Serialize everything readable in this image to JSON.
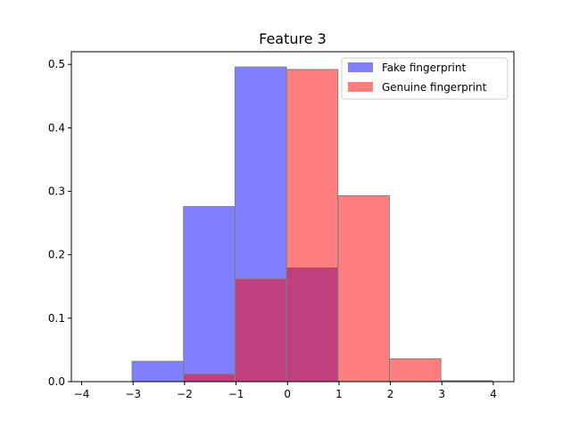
{
  "chart_data": {
    "type": "histogram",
    "title": "Feature 3",
    "xlabel": "",
    "ylabel": "",
    "xlim": [
      -4.2,
      4.4
    ],
    "ylim": [
      0,
      0.52
    ],
    "xticks": [
      -4,
      -3,
      -2,
      -1,
      0,
      1,
      2,
      3,
      4
    ],
    "yticks": [
      0.0,
      0.1,
      0.2,
      0.3,
      0.4,
      0.5
    ],
    "ytick_labels": [
      "0.0",
      "0.1",
      "0.2",
      "0.3",
      "0.4",
      "0.5"
    ],
    "grid": false,
    "legend_position": "top-right",
    "series": [
      {
        "name": "Fake fingerprint",
        "color": "#0000ff",
        "opacity": 0.5,
        "bins": [
          {
            "x0": -3.02,
            "x1": -2.02,
            "value": 0.032
          },
          {
            "x0": -2.02,
            "x1": -1.02,
            "value": 0.276
          },
          {
            "x0": -1.02,
            "x1": -0.02,
            "value": 0.496
          },
          {
            "x0": -0.02,
            "x1": 0.98,
            "value": 0.179
          },
          {
            "x0": 0.98,
            "x1": 1.98,
            "value": 0.0
          },
          {
            "x0": 1.98,
            "x1": 2.98,
            "value": 0.0
          },
          {
            "x0": 2.98,
            "x1": 3.98,
            "value": 0.0
          }
        ]
      },
      {
        "name": "Genuine fingerprint",
        "color": "#ff0000",
        "opacity": 0.5,
        "bins": [
          {
            "x0": -2.02,
            "x1": -1.02,
            "value": 0.012
          },
          {
            "x0": -1.02,
            "x1": -0.02,
            "value": 0.162
          },
          {
            "x0": -0.02,
            "x1": 0.98,
            "value": 0.492
          },
          {
            "x0": 0.98,
            "x1": 1.98,
            "value": 0.293
          },
          {
            "x0": 1.98,
            "x1": 2.98,
            "value": 0.036
          },
          {
            "x0": 2.98,
            "x1": 3.98,
            "value": 0.0015
          }
        ]
      }
    ]
  }
}
